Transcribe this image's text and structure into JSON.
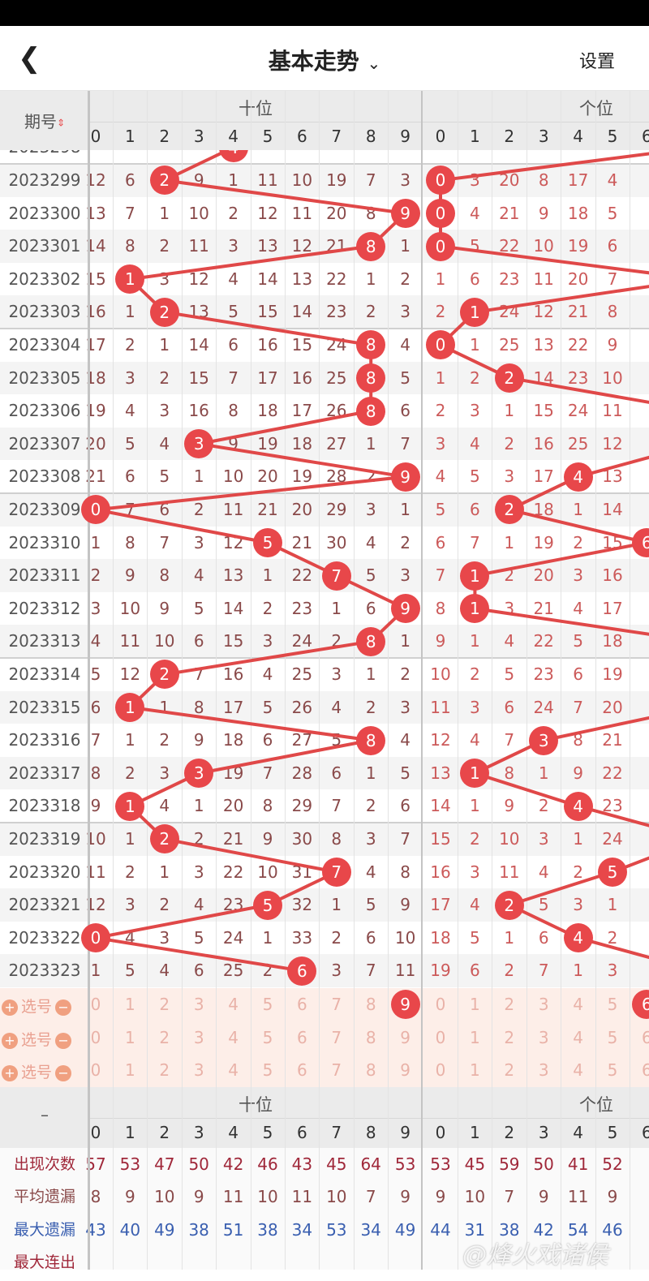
{
  "nav": {
    "back_icon": "chevron-left-icon",
    "title": "基本走势",
    "title_icon": "chevron-down-icon",
    "settings": "设置"
  },
  "header": {
    "period_label": "期号",
    "sort_icon": "sort-up-down-icon",
    "group_shi": "十位",
    "group_ge": "个位",
    "digits": [
      "0",
      "1",
      "2",
      "3",
      "4",
      "5",
      "6",
      "7",
      "8",
      "9"
    ]
  },
  "colors": {
    "ball": "#e8474a",
    "line": "#e04848",
    "shi_miss": "#8a4a4a",
    "ge_miss": "#cc5a5a",
    "count": "#a0283a",
    "max_miss": "#3a5fb0",
    "select_bg": "#fdeee8"
  },
  "rows": [
    {
      "period": "2023298",
      "shi": [],
      "shi_hit": 4,
      "ge": [],
      "ge_hit": null
    },
    {
      "period": "2023299",
      "shi": [
        12,
        6,
        2,
        9,
        1,
        11,
        10,
        19,
        7,
        3
      ],
      "shi_hit": 2,
      "ge": [
        0,
        3,
        20,
        8,
        17,
        4
      ],
      "ge_hit": 0
    },
    {
      "period": "2023300",
      "shi": [
        13,
        7,
        1,
        10,
        2,
        12,
        11,
        20,
        8,
        9
      ],
      "shi_hit": 9,
      "ge": [
        0,
        4,
        21,
        9,
        18,
        5
      ],
      "ge_hit": 0
    },
    {
      "period": "2023301",
      "shi": [
        14,
        8,
        2,
        11,
        3,
        13,
        12,
        21,
        8,
        1
      ],
      "shi_hit": 8,
      "ge": [
        0,
        5,
        22,
        10,
        19,
        6
      ],
      "ge_hit": 0
    },
    {
      "period": "2023302",
      "shi": [
        15,
        1,
        3,
        12,
        4,
        14,
        13,
        22,
        1,
        2
      ],
      "shi_hit": 1,
      "ge": [
        1,
        6,
        23,
        11,
        20,
        7
      ],
      "ge_hit": null
    },
    {
      "period": "2023303",
      "shi": [
        16,
        1,
        2,
        13,
        5,
        15,
        14,
        23,
        2,
        3
      ],
      "shi_hit": 2,
      "ge": [
        2,
        1,
        24,
        12,
        21,
        8
      ],
      "ge_hit": 1
    },
    {
      "period": "2023304",
      "shi": [
        17,
        2,
        1,
        14,
        6,
        16,
        15,
        24,
        8,
        4
      ],
      "shi_hit": 8,
      "ge": [
        0,
        1,
        25,
        13,
        22,
        9
      ],
      "ge_hit": 0
    },
    {
      "period": "2023305",
      "shi": [
        18,
        3,
        2,
        15,
        7,
        17,
        16,
        25,
        8,
        5
      ],
      "shi_hit": 8,
      "ge": [
        1,
        2,
        2,
        14,
        23,
        10
      ],
      "ge_hit": 2
    },
    {
      "period": "2023306",
      "shi": [
        19,
        4,
        3,
        16,
        8,
        18,
        17,
        26,
        8,
        6
      ],
      "shi_hit": 8,
      "ge": [
        2,
        3,
        1,
        15,
        24,
        11
      ],
      "ge_hit": null
    },
    {
      "period": "2023307",
      "shi": [
        20,
        5,
        4,
        3,
        9,
        19,
        18,
        27,
        1,
        7
      ],
      "shi_hit": 3,
      "ge": [
        3,
        4,
        2,
        16,
        25,
        12
      ],
      "ge_hit": null
    },
    {
      "period": "2023308",
      "shi": [
        21,
        6,
        5,
        1,
        10,
        20,
        19,
        28,
        2,
        9
      ],
      "shi_hit": 9,
      "ge": [
        4,
        5,
        3,
        17,
        4,
        13
      ],
      "ge_hit": 4
    },
    {
      "period": "2023309",
      "shi": [
        0,
        7,
        6,
        2,
        11,
        21,
        20,
        29,
        3,
        1
      ],
      "shi_hit": 0,
      "ge": [
        5,
        6,
        2,
        18,
        1,
        14
      ],
      "ge_hit": 2
    },
    {
      "period": "2023310",
      "shi": [
        1,
        8,
        7,
        3,
        12,
        5,
        21,
        30,
        4,
        2
      ],
      "shi_hit": 5,
      "ge": [
        6,
        7,
        1,
        19,
        2,
        15
      ],
      "ge_hit": 6
    },
    {
      "period": "2023311",
      "shi": [
        2,
        9,
        8,
        4,
        13,
        1,
        22,
        7,
        5,
        3
      ],
      "shi_hit": 7,
      "ge": [
        7,
        1,
        2,
        20,
        3,
        16
      ],
      "ge_hit": 1
    },
    {
      "period": "2023312",
      "shi": [
        3,
        10,
        9,
        5,
        14,
        2,
        23,
        1,
        6,
        9
      ],
      "shi_hit": 9,
      "ge": [
        8,
        1,
        3,
        21,
        4,
        17
      ],
      "ge_hit": 1
    },
    {
      "period": "2023313",
      "shi": [
        4,
        11,
        10,
        6,
        15,
        3,
        24,
        2,
        8,
        1
      ],
      "shi_hit": 8,
      "ge": [
        9,
        1,
        4,
        22,
        5,
        18
      ],
      "ge_hit": null
    },
    {
      "period": "2023314",
      "shi": [
        5,
        12,
        2,
        7,
        16,
        4,
        25,
        3,
        1,
        2
      ],
      "shi_hit": 2,
      "ge": [
        10,
        2,
        5,
        23,
        6,
        19
      ],
      "ge_hit": null
    },
    {
      "period": "2023315",
      "shi": [
        6,
        1,
        1,
        8,
        17,
        5,
        26,
        4,
        2,
        3
      ],
      "shi_hit": 1,
      "ge": [
        11,
        3,
        6,
        24,
        7,
        20
      ],
      "ge_hit": null
    },
    {
      "period": "2023316",
      "shi": [
        7,
        1,
        2,
        9,
        18,
        6,
        27,
        5,
        8,
        4
      ],
      "shi_hit": 8,
      "ge": [
        12,
        4,
        7,
        3,
        8,
        21
      ],
      "ge_hit": 3
    },
    {
      "period": "2023317",
      "shi": [
        8,
        2,
        3,
        3,
        19,
        7,
        28,
        6,
        1,
        5
      ],
      "shi_hit": 3,
      "ge": [
        13,
        1,
        8,
        1,
        9,
        22
      ],
      "ge_hit": 1
    },
    {
      "period": "2023318",
      "shi": [
        9,
        1,
        4,
        1,
        20,
        8,
        29,
        7,
        2,
        6
      ],
      "shi_hit": 1,
      "ge": [
        14,
        1,
        9,
        2,
        4,
        23
      ],
      "ge_hit": 4
    },
    {
      "period": "2023319",
      "shi": [
        10,
        1,
        2,
        2,
        21,
        9,
        30,
        8,
        3,
        7
      ],
      "shi_hit": 2,
      "ge": [
        15,
        2,
        10,
        3,
        1,
        24
      ],
      "ge_hit": null
    },
    {
      "period": "2023320",
      "shi": [
        11,
        2,
        1,
        3,
        22,
        10,
        31,
        7,
        4,
        8
      ],
      "shi_hit": 7,
      "ge": [
        16,
        3,
        11,
        4,
        2,
        5
      ],
      "ge_hit": 5
    },
    {
      "period": "2023321",
      "shi": [
        12,
        3,
        2,
        4,
        23,
        5,
        32,
        1,
        5,
        9
      ],
      "shi_hit": 5,
      "ge": [
        17,
        4,
        2,
        5,
        3,
        1
      ],
      "ge_hit": 2
    },
    {
      "period": "2023322",
      "shi": [
        0,
        4,
        3,
        5,
        24,
        1,
        33,
        2,
        6,
        10
      ],
      "shi_hit": 0,
      "ge": [
        18,
        5,
        1,
        6,
        4,
        2
      ],
      "ge_hit": 4
    },
    {
      "period": "2023323",
      "shi": [
        1,
        5,
        4,
        6,
        25,
        2,
        6,
        3,
        7,
        11
      ],
      "shi_hit": 6,
      "ge": [
        19,
        6,
        2,
        7,
        1,
        3
      ],
      "ge_hit": null
    }
  ],
  "select_rows": [
    {
      "label": "选号",
      "shi_selected": 9,
      "ge_selected": 6
    },
    {
      "label": "选号",
      "shi_selected": null,
      "ge_selected": null
    },
    {
      "label": "选号",
      "shi_selected": null,
      "ge_selected": null
    }
  ],
  "stats": {
    "corner": "–",
    "rows": [
      {
        "label": "出现次数",
        "color": "#a0283a",
        "shi": [
          57,
          53,
          47,
          50,
          42,
          46,
          43,
          45,
          64,
          53
        ],
        "ge": [
          53,
          45,
          59,
          50,
          41,
          52
        ]
      },
      {
        "label": "平均遗漏",
        "color": "#8a4a4a",
        "shi": [
          8,
          9,
          10,
          9,
          11,
          10,
          11,
          10,
          7,
          9
        ],
        "ge": [
          9,
          10,
          7,
          9,
          11,
          9
        ]
      },
      {
        "label": "最大遗漏",
        "color": "#3a5fb0",
        "shi": [
          43,
          40,
          49,
          38,
          51,
          38,
          34,
          53,
          34,
          49
        ],
        "ge": [
          44,
          31,
          38,
          42,
          54,
          46
        ]
      },
      {
        "label": "最大连出",
        "color": "#a0283a",
        "shi": [],
        "ge": []
      }
    ]
  },
  "watermark": "@烽火戏诸侯"
}
